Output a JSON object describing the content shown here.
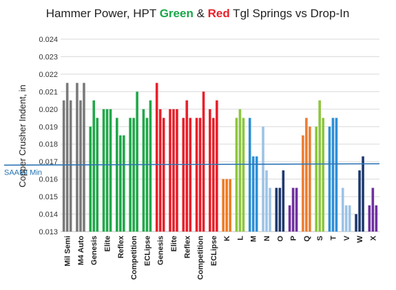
{
  "title": {
    "part1": "Hammer Power, HPT ",
    "green": "Green",
    "part2": " & ",
    "red": "Red",
    "part3": " Tgl Springs vs Drop-In",
    "green_color": "#1aa64a",
    "red_color": "#e8202a"
  },
  "colors": {
    "gray": "#7a7a7a",
    "green": "#22a84a",
    "red": "#e8202a",
    "orange": "#f07a22",
    "lightgreen": "#8cc63f",
    "blue": "#2e8fd6",
    "lightblue": "#9dc3e6",
    "navy": "#1f3a6e",
    "purple": "#7030a0",
    "orange2": "#ed7d31",
    "saami": "#2e75b6",
    "grid": "#d9d9d9"
  },
  "chart_data": {
    "type": "bar",
    "title": "Hammer Power, HPT Green & Red Tgl Springs vs Drop-In",
    "ylabel": "Copper Crusher Indent, in",
    "ylim": [
      0.013,
      0.024
    ],
    "yticks": [
      "0.013",
      "0.014",
      "0.015",
      "0.016",
      "0.017",
      "0.018",
      "0.019",
      "0.020",
      "0.021",
      "0.022",
      "0.023",
      "0.024"
    ],
    "grid": true,
    "reference_line": {
      "label": "SAAMI Min",
      "value": 0.0168
    },
    "groups": [
      {
        "label": "Mil Semi",
        "color": "gray",
        "values": [
          0.0205,
          0.0215,
          0.0205
        ]
      },
      {
        "label": "M4 Auto",
        "color": "gray",
        "values": [
          0.0215,
          0.0205,
          0.0215
        ]
      },
      {
        "label": "Genesis",
        "color": "green",
        "values": [
          0.019,
          0.0205,
          0.0195
        ]
      },
      {
        "label": "Elite",
        "color": "green",
        "values": [
          0.02,
          0.02,
          0.02
        ]
      },
      {
        "label": "Reflex",
        "color": "green",
        "values": [
          0.0195,
          0.0185,
          0.0185
        ]
      },
      {
        "label": "Competition",
        "color": "green",
        "values": [
          0.0195,
          0.0195,
          0.021
        ]
      },
      {
        "label": "ECLipse",
        "color": "green",
        "values": [
          0.02,
          0.0195,
          0.0205
        ]
      },
      {
        "label": "Genesis",
        "color": "red",
        "values": [
          0.0215,
          0.02,
          0.0195
        ]
      },
      {
        "label": "Elite",
        "color": "red",
        "values": [
          0.02,
          0.02,
          0.02
        ]
      },
      {
        "label": "Reflex",
        "color": "red",
        "values": [
          0.0195,
          0.0205,
          0.0195
        ]
      },
      {
        "label": "Competition",
        "color": "red",
        "values": [
          0.0195,
          0.0195,
          0.021
        ]
      },
      {
        "label": "ECLipse",
        "color": "red",
        "values": [
          0.02,
          0.0195,
          0.0205
        ]
      },
      {
        "label": "K",
        "color": "orange",
        "values": [
          0.016,
          0.016,
          0.016
        ]
      },
      {
        "label": "L",
        "color": "lightgreen",
        "values": [
          0.0195,
          0.02,
          0.0195
        ]
      },
      {
        "label": "M",
        "color": "blue",
        "values": [
          0.0195,
          0.0173,
          0.0173
        ]
      },
      {
        "label": "N",
        "color": "lightblue",
        "values": [
          0.019,
          0.0165,
          0.0155
        ]
      },
      {
        "label": "O",
        "color": "navy",
        "values": [
          0.0155,
          0.0155,
          0.0165
        ]
      },
      {
        "label": "P",
        "color": "purple",
        "values": [
          0.0145,
          0.0155,
          0.0155
        ]
      },
      {
        "label": "Q",
        "color": "orange2",
        "values": [
          0.0185,
          0.0195,
          0.019
        ]
      },
      {
        "label": "S",
        "color": "lightgreen",
        "values": [
          0.019,
          0.0205,
          0.0195
        ]
      },
      {
        "label": "T",
        "color": "blue",
        "values": [
          0.019,
          0.0195,
          0.0195
        ]
      },
      {
        "label": "V",
        "color": "lightblue",
        "values": [
          0.0155,
          0.0145,
          0.0145
        ]
      },
      {
        "label": "W",
        "color": "navy",
        "values": [
          0.014,
          0.0165,
          0.0173
        ]
      },
      {
        "label": "X",
        "color": "purple",
        "values": [
          0.0145,
          0.0155,
          0.0145
        ]
      }
    ]
  }
}
